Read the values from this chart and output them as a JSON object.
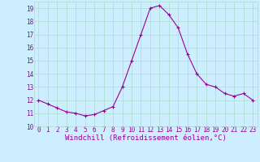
{
  "x": [
    0,
    1,
    2,
    3,
    4,
    5,
    6,
    7,
    8,
    9,
    10,
    11,
    12,
    13,
    14,
    15,
    16,
    17,
    18,
    19,
    20,
    21,
    22,
    23
  ],
  "y": [
    12.0,
    11.7,
    11.4,
    11.1,
    11.0,
    10.8,
    10.9,
    11.2,
    11.5,
    13.0,
    15.0,
    17.0,
    19.0,
    19.2,
    18.5,
    17.5,
    15.5,
    14.0,
    13.2,
    13.0,
    12.5,
    12.3,
    12.5,
    12.0
  ],
  "xlim": [
    -0.5,
    23.5
  ],
  "ylim": [
    10,
    19.5
  ],
  "yticks": [
    10,
    11,
    12,
    13,
    14,
    15,
    16,
    17,
    18,
    19
  ],
  "xticks": [
    0,
    1,
    2,
    3,
    4,
    5,
    6,
    7,
    8,
    9,
    10,
    11,
    12,
    13,
    14,
    15,
    16,
    17,
    18,
    19,
    20,
    21,
    22,
    23
  ],
  "xlabel": "Windchill (Refroidissement éolien,°C)",
  "line_color": "#990099",
  "marker_color": "#990099",
  "bg_color": "#cceeff",
  "grid_color": "#aaddcc",
  "tick_label_color": "#990099",
  "xlabel_color": "#990099",
  "tick_fontsize": 5.5,
  "xlabel_fontsize": 6.5
}
